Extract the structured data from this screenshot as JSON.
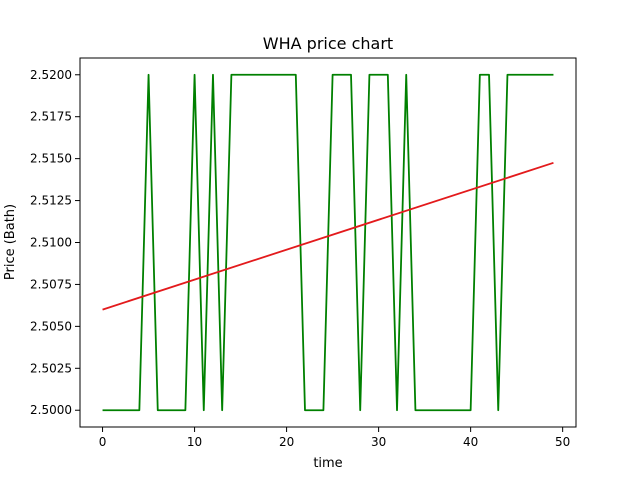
{
  "chart_data": {
    "type": "line",
    "title": "WHA price chart",
    "xlabel": "time",
    "ylabel": "Price (Bath)",
    "xlim": [
      -2.45,
      51.45
    ],
    "ylim": [
      2.499,
      2.521
    ],
    "x_ticks": [
      0,
      10,
      20,
      30,
      40,
      50
    ],
    "y_ticks": [
      2.5,
      2.5025,
      2.505,
      2.5075,
      2.51,
      2.5125,
      2.515,
      2.5175,
      2.52
    ],
    "y_tick_labels": [
      "2.5000",
      "2.5025",
      "2.5050",
      "2.5075",
      "2.5100",
      "2.5125",
      "2.5150",
      "2.5175",
      "2.5200"
    ],
    "grid": false,
    "legend": "none",
    "series": [
      {
        "color": "#008000",
        "x": [
          0,
          1,
          2,
          3,
          4,
          5,
          6,
          7,
          8,
          9,
          10,
          11,
          12,
          13,
          14,
          15,
          16,
          17,
          18,
          19,
          20,
          21,
          22,
          23,
          24,
          25,
          26,
          27,
          28,
          29,
          30,
          31,
          32,
          33,
          34,
          35,
          36,
          37,
          38,
          39,
          40,
          41,
          42,
          43,
          44,
          45,
          46,
          47,
          48,
          49
        ],
        "y": [
          2.5,
          2.5,
          2.5,
          2.5,
          2.5,
          2.52,
          2.5,
          2.5,
          2.5,
          2.5,
          2.52,
          2.5,
          2.52,
          2.5,
          2.52,
          2.52,
          2.52,
          2.52,
          2.52,
          2.52,
          2.52,
          2.52,
          2.5,
          2.5,
          2.5,
          2.52,
          2.52,
          2.52,
          2.5,
          2.52,
          2.52,
          2.52,
          2.5,
          2.52,
          2.5,
          2.5,
          2.5,
          2.5,
          2.5,
          2.5,
          2.5,
          2.52,
          2.52,
          2.5,
          2.52,
          2.52,
          2.52,
          2.52,
          2.52,
          2.52
        ]
      },
      {
        "color": "#e31a1c",
        "x": [
          0,
          49
        ],
        "y": [
          2.506,
          2.51475
        ]
      }
    ]
  }
}
